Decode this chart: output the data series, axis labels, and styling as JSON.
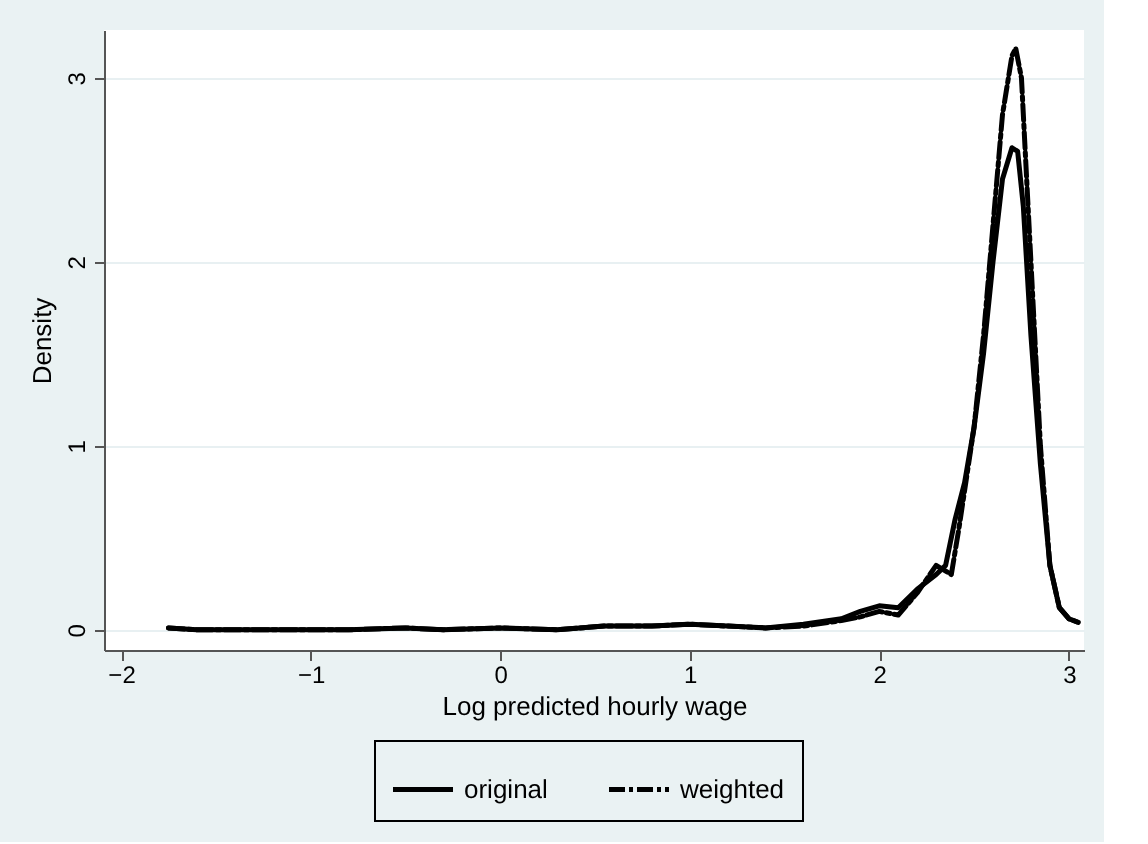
{
  "chart_data": {
    "type": "line",
    "xlabel": "Log predicted hourly wage",
    "ylabel": "Density",
    "xlim": [
      -2.09,
      3.08
    ],
    "ylim": [
      -0.11,
      3.26
    ],
    "xticks": [
      -2,
      -1,
      0,
      1,
      2,
      3
    ],
    "yticks": [
      0,
      1,
      2,
      3
    ],
    "grid": "y",
    "legend": "bottom",
    "series": [
      {
        "name": "original",
        "color": "#000000",
        "line_style": "solid",
        "x": [
          -1.75,
          -1.6,
          -1.2,
          -0.8,
          -0.5,
          -0.3,
          0,
          0.3,
          0.55,
          0.8,
          1.0,
          1.2,
          1.4,
          1.6,
          1.8,
          1.9,
          2.0,
          2.1,
          2.2,
          2.3,
          2.35,
          2.4,
          2.45,
          2.5,
          2.55,
          2.6,
          2.65,
          2.7,
          2.73,
          2.76,
          2.8,
          2.85,
          2.9,
          2.95,
          3.0,
          3.05
        ],
        "values": [
          0.01,
          0.0,
          0.0,
          0.0,
          0.01,
          0.0,
          0.01,
          0.0,
          0.02,
          0.02,
          0.03,
          0.02,
          0.01,
          0.03,
          0.06,
          0.1,
          0.13,
          0.12,
          0.22,
          0.3,
          0.35,
          0.6,
          0.8,
          1.1,
          1.5,
          2.0,
          2.45,
          2.62,
          2.6,
          2.3,
          1.6,
          0.9,
          0.35,
          0.12,
          0.06,
          0.04
        ]
      },
      {
        "name": "weighted",
        "color": "#000000",
        "line_style": "dashed",
        "x": [
          -1.75,
          -1.6,
          -1.2,
          -0.8,
          -0.5,
          -0.3,
          0,
          0.3,
          0.55,
          0.8,
          1.0,
          1.2,
          1.4,
          1.6,
          1.8,
          1.9,
          2.0,
          2.1,
          2.2,
          2.3,
          2.38,
          2.42,
          2.5,
          2.55,
          2.6,
          2.65,
          2.7,
          2.72,
          2.75,
          2.8,
          2.85,
          2.9,
          2.95,
          3.0,
          3.05
        ],
        "values": [
          0.01,
          0.0,
          0.0,
          0.0,
          0.01,
          0.0,
          0.01,
          0.0,
          0.02,
          0.02,
          0.03,
          0.02,
          0.01,
          0.02,
          0.05,
          0.07,
          0.1,
          0.08,
          0.2,
          0.35,
          0.3,
          0.55,
          1.1,
          1.6,
          2.2,
          2.8,
          3.12,
          3.16,
          3.0,
          2.0,
          1.0,
          0.35,
          0.12,
          0.06,
          0.04
        ]
      }
    ]
  }
}
